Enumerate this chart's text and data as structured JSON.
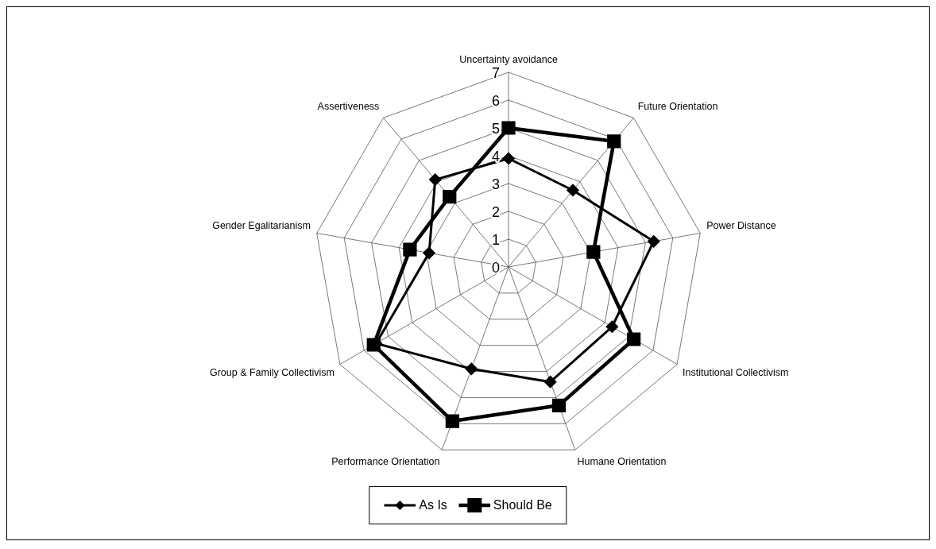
{
  "chart_data": {
    "type": "radar",
    "categories": [
      "Uncertainty avoidance",
      "Future Orientation",
      "Power Distance",
      "Institutional Collectivism",
      "Humane Orientation",
      "Performance Orientation",
      "Group & Family Collectivism",
      "Gender Egalitarianism",
      "Assertiveness"
    ],
    "series": [
      {
        "name": "As Is",
        "color": "#000000",
        "marker": "diamond",
        "values": [
          3.9,
          3.6,
          5.3,
          4.3,
          4.4,
          3.9,
          5.5,
          2.9,
          4.1
        ]
      },
      {
        "name": "Should Be",
        "color": "#000000",
        "marker": "square",
        "values": [
          5.0,
          5.9,
          3.1,
          5.2,
          5.3,
          5.9,
          5.6,
          3.6,
          3.3
        ]
      }
    ],
    "ylim": [
      0,
      7
    ],
    "yticks": [
      0,
      1,
      2,
      3,
      4,
      5,
      6,
      7
    ],
    "grid": true,
    "legend": "bottom"
  }
}
